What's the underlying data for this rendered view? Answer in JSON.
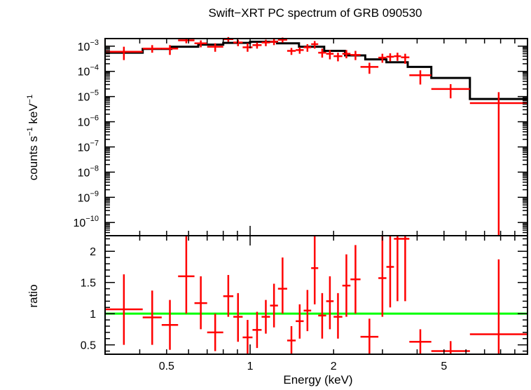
{
  "chart_data": {
    "title": "Swift−XRT PC spectrum of GRB 090530",
    "xlabel": "Energy (keV)",
    "x_scale": "log",
    "xlim": [
      0.3,
      10
    ],
    "x_ticks": [
      0.5,
      1,
      2,
      5
    ],
    "x_tick_labels": [
      "0.5",
      "1",
      "2",
      "5"
    ],
    "panels": [
      {
        "type": "step+errorbar",
        "name": "spectrum",
        "ylabel_main": "counts s",
        "ylabel_sup1": "−1",
        "ylabel_mid": " keV",
        "ylabel_sup2": "−1",
        "y_scale": "log",
        "ylim": [
          3e-11,
          0.002
        ],
        "y_ticks": [
          {
            "value": 0.001,
            "base": "10",
            "exp": "−3"
          },
          {
            "value": 0.0001,
            "base": "10",
            "exp": "−4"
          },
          {
            "value": 1e-05,
            "base": "10",
            "exp": "−5"
          },
          {
            "value": 1e-06,
            "base": "10",
            "exp": "−6"
          },
          {
            "value": 1e-07,
            "base": "10",
            "exp": "−7"
          },
          {
            "value": 1e-08,
            "base": "10",
            "exp": "−8"
          },
          {
            "value": 1e-09,
            "base": "10",
            "exp": "−9"
          },
          {
            "value": 1e-10,
            "base": "10",
            "exp": "−10"
          }
        ],
        "data_color": "#ff0000",
        "model_color": "#000000",
        "model": {
          "x": [
            0.3,
            0.41,
            0.52,
            0.65,
            0.8,
            1.0,
            1.25,
            1.5,
            1.85,
            2.2,
            2.6,
            3.1,
            3.7,
            4.5,
            6.2,
            10.0
          ],
          "y": [
            0.00055,
            0.00078,
            0.00095,
            0.00115,
            0.00135,
            0.0015,
            0.0013,
            0.00095,
            0.00065,
            0.00043,
            0.0003,
            0.00023,
            0.00015,
            5.5e-05,
            8e-06
          ]
        },
        "data": [
          {
            "xlo": 0.3,
            "xhi": 0.41,
            "y": 0.0006,
            "ylo": 0.00028,
            "yhi": 0.00095
          },
          {
            "xlo": 0.41,
            "xhi": 0.48,
            "y": 0.0008,
            "ylo": 0.00055,
            "yhi": 0.0011
          },
          {
            "xlo": 0.48,
            "xhi": 0.55,
            "y": 0.0008,
            "ylo": 0.00045,
            "yhi": 0.0011
          },
          {
            "xlo": 0.55,
            "xhi": 0.63,
            "y": 0.0017,
            "ylo": 0.0013,
            "yhi": 0.0021
          },
          {
            "xlo": 0.63,
            "xhi": 0.7,
            "y": 0.0013,
            "ylo": 0.0009,
            "yhi": 0.0017
          },
          {
            "xlo": 0.7,
            "xhi": 0.8,
            "y": 0.00095,
            "ylo": 0.0006,
            "yhi": 0.0013
          },
          {
            "xlo": 0.8,
            "xhi": 0.87,
            "y": 0.0019,
            "ylo": 0.0015,
            "yhi": 0.0023
          },
          {
            "xlo": 0.87,
            "xhi": 0.94,
            "y": 0.0014,
            "ylo": 0.001,
            "yhi": 0.0018
          },
          {
            "xlo": 0.94,
            "xhi": 1.02,
            "y": 0.0009,
            "ylo": 0.0006,
            "yhi": 0.0013
          },
          {
            "xlo": 1.02,
            "xhi": 1.1,
            "y": 0.0011,
            "ylo": 0.0008,
            "yhi": 0.0014
          },
          {
            "xlo": 1.1,
            "xhi": 1.18,
            "y": 0.0014,
            "ylo": 0.001,
            "yhi": 0.0018
          },
          {
            "xlo": 1.18,
            "xhi": 1.26,
            "y": 0.0015,
            "ylo": 0.0011,
            "yhi": 0.0019
          },
          {
            "xlo": 1.26,
            "xhi": 1.36,
            "y": 0.0018,
            "ylo": 0.0014,
            "yhi": 0.0022
          },
          {
            "xlo": 1.36,
            "xhi": 1.46,
            "y": 0.00065,
            "ylo": 0.00045,
            "yhi": 0.00085
          },
          {
            "xlo": 1.46,
            "xhi": 1.56,
            "y": 0.0007,
            "ylo": 0.0005,
            "yhi": 0.0009
          },
          {
            "xlo": 1.56,
            "xhi": 1.66,
            "y": 0.0009,
            "ylo": 0.0006,
            "yhi": 0.0012
          },
          {
            "xlo": 1.66,
            "xhi": 1.76,
            "y": 0.0012,
            "ylo": 0.0008,
            "yhi": 0.0016
          },
          {
            "xlo": 1.76,
            "xhi": 1.88,
            "y": 0.00055,
            "ylo": 0.00035,
            "yhi": 0.0008
          },
          {
            "xlo": 1.88,
            "xhi": 2.0,
            "y": 0.0005,
            "ylo": 0.0003,
            "yhi": 0.0007
          },
          {
            "xlo": 2.0,
            "xhi": 2.15,
            "y": 0.0004,
            "ylo": 0.00025,
            "yhi": 0.00055
          },
          {
            "xlo": 2.15,
            "xhi": 2.3,
            "y": 0.0005,
            "ylo": 0.00033,
            "yhi": 0.0007
          },
          {
            "xlo": 2.3,
            "xhi": 2.5,
            "y": 0.00045,
            "ylo": 0.00028,
            "yhi": 0.00065
          },
          {
            "xlo": 2.5,
            "xhi": 2.9,
            "y": 0.00015,
            "ylo": 8e-05,
            "yhi": 0.00022
          },
          {
            "xlo": 2.9,
            "xhi": 3.1,
            "y": 0.00035,
            "ylo": 0.00022,
            "yhi": 0.0005
          },
          {
            "xlo": 3.1,
            "xhi": 3.3,
            "y": 0.00038,
            "ylo": 0.00025,
            "yhi": 0.00052
          },
          {
            "xlo": 3.3,
            "xhi": 3.5,
            "y": 0.0004,
            "ylo": 0.00026,
            "yhi": 0.00055
          },
          {
            "xlo": 3.5,
            "xhi": 3.75,
            "y": 0.00036,
            "ylo": 0.0002,
            "yhi": 0.0005
          },
          {
            "xlo": 3.75,
            "xhi": 4.5,
            "y": 7e-05,
            "ylo": 3e-05,
            "yhi": 0.00011
          },
          {
            "xlo": 4.5,
            "xhi": 6.2,
            "y": 2e-05,
            "ylo": 8.5e-06,
            "yhi": 3.1e-05
          },
          {
            "xlo": 6.2,
            "xhi": 10.0,
            "y": 5.5e-06,
            "ylo": 3e-11,
            "yhi": 1.5e-05
          }
        ]
      },
      {
        "type": "errorbar",
        "name": "ratio",
        "ylabel": "ratio",
        "y_scale": "linear",
        "ylim": [
          0.35,
          2.25
        ],
        "y_ticks": [
          0.5,
          1,
          1.5,
          2
        ],
        "y_tick_labels": [
          "0.5",
          "1",
          "1.5",
          "2"
        ],
        "reference_line": 1,
        "reference_color": "#00ff00",
        "data_color": "#ff0000",
        "data": [
          {
            "xlo": 0.3,
            "xhi": 0.41,
            "y": 1.07,
            "ylo": 0.5,
            "yhi": 1.63
          },
          {
            "xlo": 0.41,
            "xhi": 0.48,
            "y": 0.94,
            "ylo": 0.5,
            "yhi": 1.37
          },
          {
            "xlo": 0.48,
            "xhi": 0.55,
            "y": 0.82,
            "ylo": 0.42,
            "yhi": 1.22
          },
          {
            "xlo": 0.55,
            "xhi": 0.63,
            "y": 1.6,
            "ylo": 1.0,
            "yhi": 2.25
          },
          {
            "xlo": 0.63,
            "xhi": 0.7,
            "y": 1.17,
            "ylo": 0.75,
            "yhi": 1.6
          },
          {
            "xlo": 0.7,
            "xhi": 0.8,
            "y": 0.7,
            "ylo": 0.4,
            "yhi": 1.0
          },
          {
            "xlo": 0.8,
            "xhi": 0.87,
            "y": 1.28,
            "ylo": 0.95,
            "yhi": 1.62
          },
          {
            "xlo": 0.87,
            "xhi": 0.94,
            "y": 0.95,
            "ylo": 0.55,
            "yhi": 1.33
          },
          {
            "xlo": 0.94,
            "xhi": 1.02,
            "y": 0.62,
            "ylo": 0.35,
            "yhi": 0.9
          },
          {
            "xlo": 1.02,
            "xhi": 1.1,
            "y": 0.74,
            "ylo": 0.45,
            "yhi": 1.03
          },
          {
            "xlo": 1.1,
            "xhi": 1.18,
            "y": 0.95,
            "ylo": 0.68,
            "yhi": 1.22
          },
          {
            "xlo": 1.18,
            "xhi": 1.26,
            "y": 1.13,
            "ylo": 0.78,
            "yhi": 1.48
          },
          {
            "xlo": 1.26,
            "xhi": 1.36,
            "y": 1.4,
            "ylo": 1.0,
            "yhi": 1.9
          },
          {
            "xlo": 1.36,
            "xhi": 1.46,
            "y": 0.57,
            "ylo": 0.35,
            "yhi": 0.8
          },
          {
            "xlo": 1.46,
            "xhi": 1.56,
            "y": 0.88,
            "ylo": 0.6,
            "yhi": 1.15
          },
          {
            "xlo": 1.56,
            "xhi": 1.66,
            "y": 1.05,
            "ylo": 0.72,
            "yhi": 1.38
          },
          {
            "xlo": 1.66,
            "xhi": 1.76,
            "y": 1.73,
            "ylo": 1.15,
            "yhi": 2.25
          },
          {
            "xlo": 1.76,
            "xhi": 1.88,
            "y": 0.97,
            "ylo": 0.6,
            "yhi": 1.33
          },
          {
            "xlo": 1.88,
            "xhi": 2.0,
            "y": 1.2,
            "ylo": 0.75,
            "yhi": 1.6
          },
          {
            "xlo": 2.0,
            "xhi": 2.15,
            "y": 0.95,
            "ylo": 0.6,
            "yhi": 1.33
          },
          {
            "xlo": 2.15,
            "xhi": 2.3,
            "y": 1.45,
            "ylo": 0.95,
            "yhi": 1.95
          },
          {
            "xlo": 2.3,
            "xhi": 2.5,
            "y": 1.55,
            "ylo": 1.0,
            "yhi": 2.1
          },
          {
            "xlo": 2.5,
            "xhi": 2.9,
            "y": 0.63,
            "ylo": 0.35,
            "yhi": 0.92
          },
          {
            "xlo": 2.9,
            "xhi": 3.1,
            "y": 1.57,
            "ylo": 0.95,
            "yhi": 2.25
          },
          {
            "xlo": 3.1,
            "xhi": 3.3,
            "y": 1.75,
            "ylo": 1.1,
            "yhi": 2.25
          },
          {
            "xlo": 3.3,
            "xhi": 3.5,
            "y": 2.2,
            "ylo": 1.2,
            "yhi": 2.25
          },
          {
            "xlo": 3.5,
            "xhi": 3.75,
            "y": 2.2,
            "ylo": 1.2,
            "yhi": 2.25
          },
          {
            "xlo": 3.75,
            "xhi": 4.5,
            "y": 0.55,
            "ylo": 0.35,
            "yhi": 0.75
          },
          {
            "xlo": 4.5,
            "xhi": 6.2,
            "y": 0.4,
            "ylo": 0.35,
            "yhi": 0.56
          },
          {
            "xlo": 6.2,
            "xhi": 10.0,
            "y": 0.67,
            "ylo": 0.35,
            "yhi": 1.87
          }
        ]
      }
    ]
  }
}
